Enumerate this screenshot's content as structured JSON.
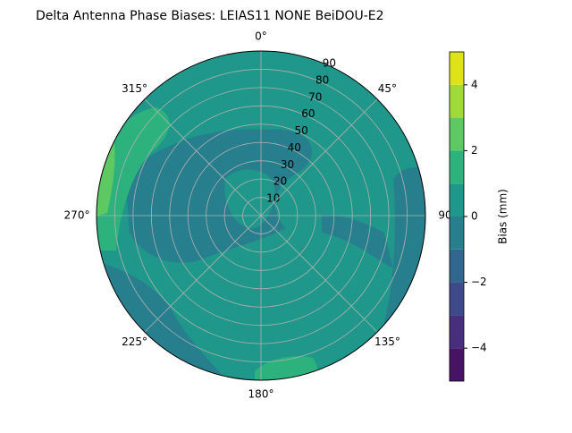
{
  "chart_data": {
    "type": "polar-contour",
    "title": "Delta Antenna Phase Biases: LEIAS11         NONE BeiDOU-E2",
    "rlim": [
      0,
      90
    ],
    "rticks": [
      10,
      20,
      30,
      40,
      50,
      60,
      70,
      80,
      90
    ],
    "theta_ticks": [
      {
        "value": 0,
        "label": "0°"
      },
      {
        "value": 45,
        "label": "45°"
      },
      {
        "value": 90,
        "label": "90"
      },
      {
        "value": 135,
        "label": "135°"
      },
      {
        "value": 180,
        "label": "180°"
      },
      {
        "value": 225,
        "label": "225°"
      },
      {
        "value": 270,
        "label": "270°"
      },
      {
        "value": 315,
        "label": "315°"
      }
    ],
    "levels": [
      -5,
      -4,
      -3,
      -2,
      -1,
      0,
      1,
      2,
      3,
      4,
      5
    ],
    "colors": [
      "#471365",
      "#482f7d",
      "#3e4a89",
      "#31668e",
      "#277f8e",
      "#1f988b",
      "#2db27d",
      "#5ec962",
      "#a0da39",
      "#dde318"
    ],
    "clim": [
      -5,
      5
    ],
    "cticks": [
      {
        "value": -4,
        "label": "−4"
      },
      {
        "value": -2,
        "label": "−2"
      },
      0,
      2,
      4
    ],
    "colorbar_label": "Bias (mm)",
    "grid": true
  }
}
